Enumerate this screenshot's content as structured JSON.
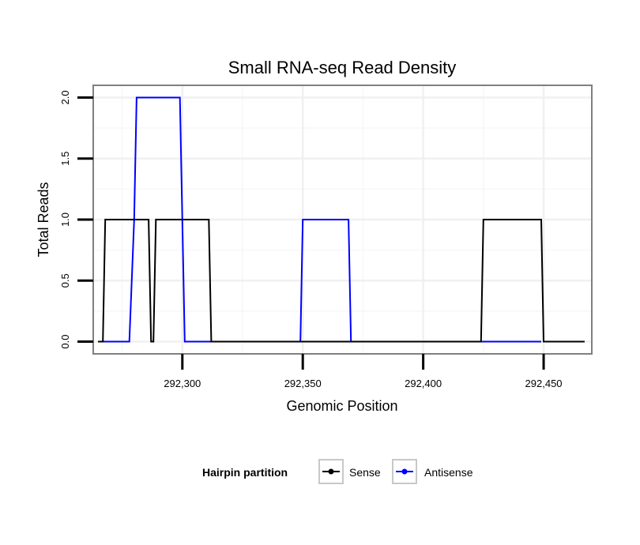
{
  "chart_data": {
    "type": "line",
    "title": "Small RNA-seq Read Density",
    "xlabel": "Genomic Position",
    "ylabel": "Total Reads",
    "xlim": [
      292263,
      292470
    ],
    "ylim": [
      -0.1,
      2.1
    ],
    "xticks": [
      292300,
      292350,
      292400,
      292450
    ],
    "xtick_labels": [
      "292,300",
      "292,350",
      "292,400",
      "292,450"
    ],
    "yticks": [
      0.0,
      0.5,
      1.0,
      1.5,
      2.0
    ],
    "ytick_labels": [
      "0.0",
      "0.5",
      "1.0",
      "1.5",
      "2.0"
    ],
    "grid": true,
    "legend": {
      "title": "Hairpin partition",
      "position": "bottom",
      "entries": [
        "Sense",
        "Antisense"
      ]
    },
    "series": [
      {
        "name": "Antisense",
        "color": "#0000ff",
        "x": [
          292265,
          292278,
          292280,
          292281,
          292299,
          292301,
          292311,
          292349,
          292350,
          292369,
          292370,
          292448,
          292449
        ],
        "y": [
          0,
          0,
          1,
          2,
          2,
          0,
          0,
          0,
          1,
          1,
          0,
          0,
          0
        ]
      },
      {
        "name": "Sense",
        "color": "#000000",
        "x": [
          292265,
          292267,
          292268,
          292286,
          292287,
          292288,
          292289,
          292311,
          292312,
          292424,
          292425,
          292449,
          292450,
          292467
        ],
        "y": [
          0,
          0,
          1,
          1,
          0,
          0,
          1,
          1,
          0,
          0,
          1,
          1,
          0,
          0
        ]
      }
    ]
  }
}
